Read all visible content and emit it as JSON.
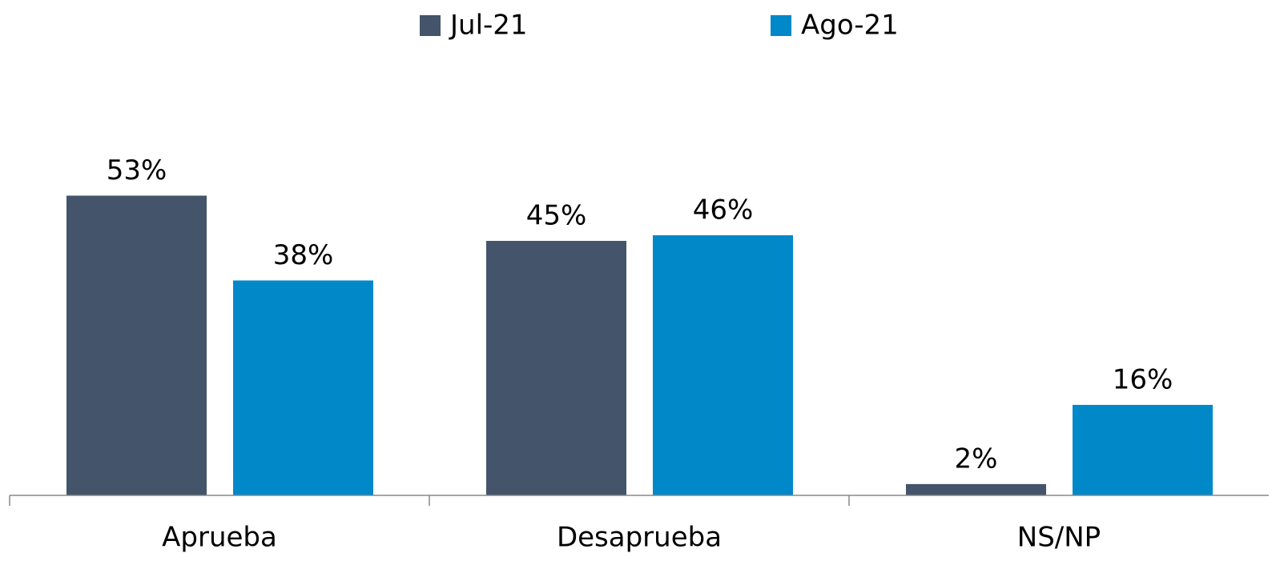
{
  "chart_data": {
    "type": "bar",
    "categories": [
      "Aprueba",
      "Desaprueba",
      "NS/NP"
    ],
    "series": [
      {
        "name": "Jul-21",
        "color": "#44546a",
        "values": [
          53,
          45,
          2
        ],
        "value_labels": [
          "53%",
          "45%",
          "2%"
        ]
      },
      {
        "name": "Ago-21",
        "color": "#0088c8",
        "values": [
          38,
          46,
          16
        ],
        "value_labels": [
          "38%",
          "46%",
          "16%"
        ]
      }
    ],
    "ylim": [
      0,
      60
    ],
    "legend": "top"
  }
}
